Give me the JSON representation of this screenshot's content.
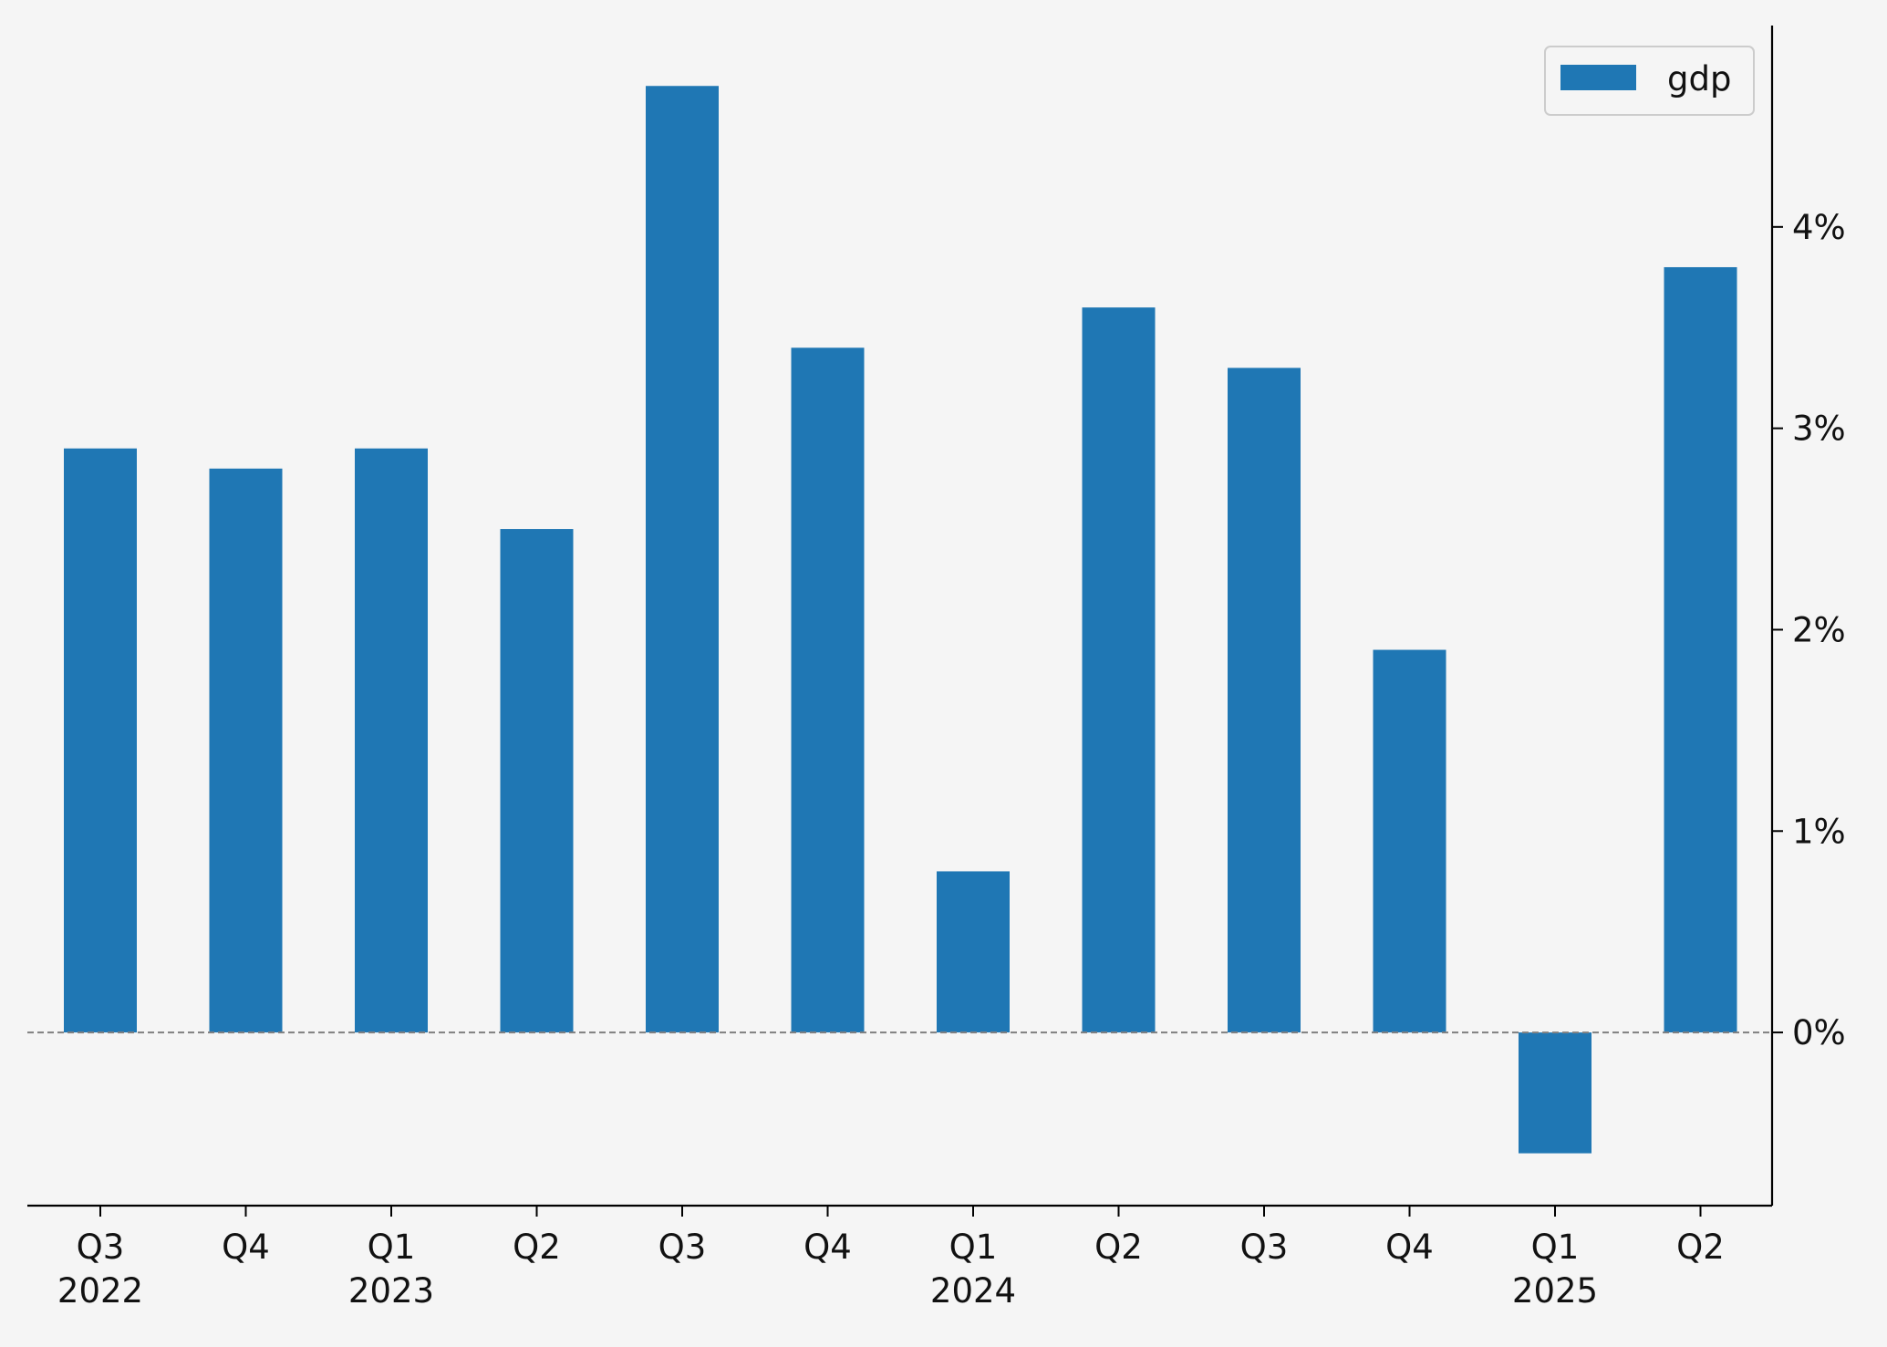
{
  "chart_data": {
    "type": "bar",
    "title": "",
    "xlabel": "",
    "ylabel": "",
    "categories": [
      {
        "quarter": "Q3",
        "year": "2022"
      },
      {
        "quarter": "Q4",
        "year": ""
      },
      {
        "quarter": "Q1",
        "year": "2023"
      },
      {
        "quarter": "Q2",
        "year": ""
      },
      {
        "quarter": "Q3",
        "year": ""
      },
      {
        "quarter": "Q4",
        "year": ""
      },
      {
        "quarter": "Q1",
        "year": "2024"
      },
      {
        "quarter": "Q2",
        "year": ""
      },
      {
        "quarter": "Q3",
        "year": ""
      },
      {
        "quarter": "Q4",
        "year": ""
      },
      {
        "quarter": "Q1",
        "year": "2025"
      },
      {
        "quarter": "Q2",
        "year": ""
      }
    ],
    "series": [
      {
        "name": "gdp",
        "color": "#1f77b4",
        "values": [
          2.9,
          2.8,
          2.9,
          2.5,
          4.7,
          3.4,
          0.8,
          3.6,
          3.3,
          1.9,
          -0.6,
          3.8
        ]
      }
    ],
    "ylim": [
      -0.86,
      5.0
    ],
    "y_ticks": [
      0,
      1,
      2,
      3,
      4
    ],
    "y_tick_labels": [
      "0%",
      "1%",
      "2%",
      "3%",
      "4%"
    ],
    "y_axis_side": "right",
    "grid": false,
    "zero_line": {
      "value": 0,
      "style": "dashed",
      "color": "#808080"
    },
    "legend": {
      "placement": "top-right",
      "entries": [
        "gdp"
      ]
    },
    "background": "#f5f5f5"
  }
}
